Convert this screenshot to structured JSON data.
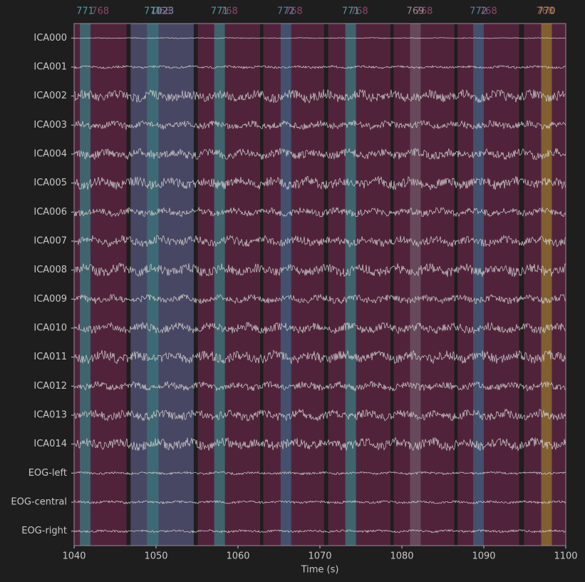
{
  "chart_data": {
    "type": "raw-browser",
    "xlabel": "Time (s)",
    "xlim": [
      1040,
      1100
    ],
    "xticks": [
      1040,
      1050,
      1060,
      1070,
      1080,
      1090,
      1100
    ],
    "channels": [
      "ICA000",
      "ICA001",
      "ICA002",
      "ICA003",
      "ICA004",
      "ICA005",
      "ICA006",
      "ICA007",
      "ICA008",
      "ICA009",
      "ICA010",
      "ICA011",
      "ICA012",
      "ICA013",
      "ICA014",
      "EOG-left",
      "EOG-central",
      "EOG-right"
    ],
    "annotation_colors": {
      "768": "#5a2440",
      "771": "#3c7078",
      "772": "#415878",
      "769": "#6a5060",
      "770": "#8a6a30",
      "1023": "#454d6c"
    },
    "annotation_label_colors": {
      "768": "#8c4a6c",
      "771": "#4f9aa6",
      "772": "#5d80a8",
      "769": "#9a8890",
      "770": "#c89a4c",
      "1023": "#8090b8"
    },
    "annotations": [
      {
        "onset": 1040,
        "duration": 6.4,
        "description": "768"
      },
      {
        "onset": 1046.9,
        "duration": 7.7,
        "description": "768"
      },
      {
        "onset": 1055.1,
        "duration": 7.6,
        "description": "768"
      },
      {
        "onset": 1063.1,
        "duration": 7.4,
        "description": "768"
      },
      {
        "onset": 1071.0,
        "duration": 7.6,
        "description": "768"
      },
      {
        "onset": 1079.0,
        "duration": 7.4,
        "description": "768"
      },
      {
        "onset": 1086.8,
        "duration": 7.5,
        "description": "768"
      },
      {
        "onset": 1094.9,
        "duration": 5.1,
        "description": "768"
      },
      {
        "onset": 1046.9,
        "duration": 7.7,
        "description": "1023"
      },
      {
        "onset": 1040.7,
        "duration": 1.3,
        "description": "771"
      },
      {
        "onset": 1048.9,
        "duration": 1.4,
        "description": "771"
      },
      {
        "onset": 1057.1,
        "duration": 1.3,
        "description": "771"
      },
      {
        "onset": 1073.1,
        "duration": 1.3,
        "description": "771"
      },
      {
        "onset": 1065.2,
        "duration": 1.3,
        "description": "772"
      },
      {
        "onset": 1088.7,
        "duration": 1.3,
        "description": "772"
      },
      {
        "onset": 1081.0,
        "duration": 1.3,
        "description": "769"
      },
      {
        "onset": 1097.0,
        "duration": 1.3,
        "description": "770"
      }
    ]
  }
}
